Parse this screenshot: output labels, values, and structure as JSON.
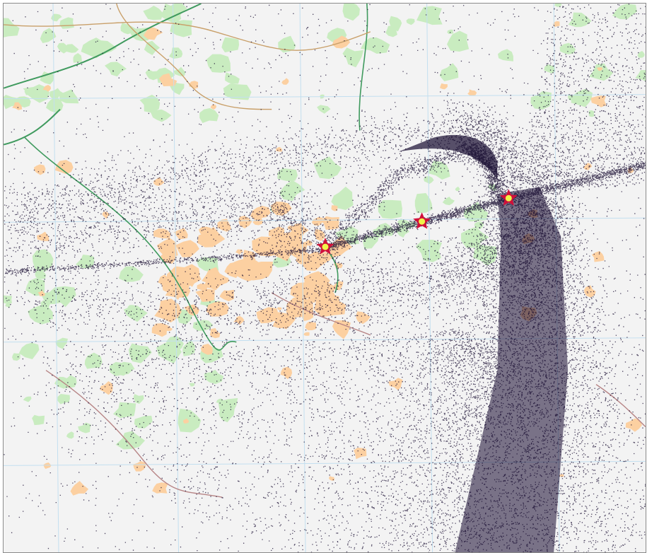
{
  "map": {
    "kind": "flight-trajectory-density-map",
    "colors": {
      "background": "#f3f3f3",
      "woodland": "#c9ecc0",
      "urban": "#fcd0a1",
      "road_primary": "#3f9a5e",
      "road_secondary": "#c9a06a",
      "road_minor": "#b78586",
      "water": "#a6d5ef",
      "grid": "#c3dff0",
      "track_points": "#14082e",
      "marker_star": "#d0103a",
      "marker_center": "#f0f44a"
    },
    "markers": [
      {
        "name": "airport-marker-west",
        "icon": "star-icon"
      },
      {
        "name": "airport-marker-middle",
        "icon": "star-icon"
      },
      {
        "name": "airport-marker-east",
        "icon": "star-icon"
      }
    ]
  }
}
